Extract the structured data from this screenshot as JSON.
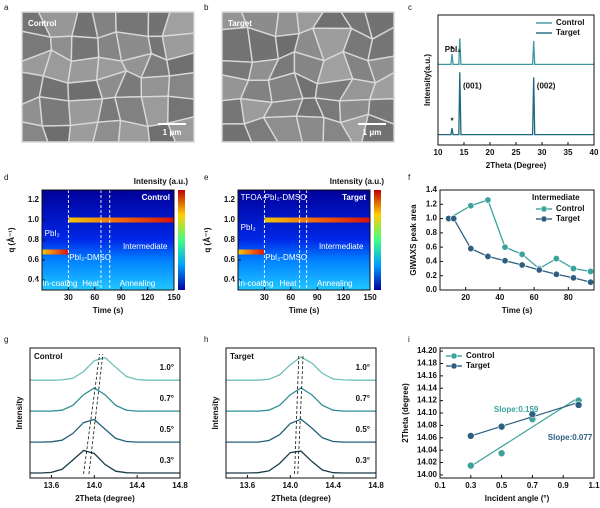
{
  "images": [
    {
      "panel_label": "a",
      "label": "Control",
      "scale_bar": "1 μm"
    },
    {
      "panel_label": "b",
      "label": "Target",
      "scale_bar": "1 μm"
    }
  ],
  "chart_data": [
    {
      "type": "line",
      "panel_label": "c",
      "xlabel": "2Theta (Degree)",
      "ylabel": "Intensity(a.u.)",
      "x": [
        10,
        12.5,
        12.7,
        12.9,
        14.0,
        14.2,
        14.4,
        28.2,
        28.4,
        28.6,
        40
      ],
      "series": [
        {
          "name": "Control",
          "color": "#3e9aa0",
          "values": [
            62,
            62,
            70,
            62,
            62,
            82,
            62,
            62,
            80,
            62,
            62
          ]
        },
        {
          "name": "Target",
          "color": "#1d6a80",
          "values": [
            8,
            8,
            13,
            8,
            8,
            56,
            8,
            8,
            52,
            8,
            8
          ]
        }
      ],
      "xlim": [
        10,
        40
      ],
      "xticks": [
        10,
        15,
        20,
        25,
        30,
        35,
        40
      ],
      "ylim": [
        0,
        100
      ],
      "legend": "upper right",
      "annotations": [
        "PbI₂",
        "*",
        "*",
        "(001)",
        "(002)"
      ]
    },
    {
      "type": "heatmap",
      "panel_label": "d",
      "title": "Control",
      "xlabel": "Time (s)",
      "ylabel": "q (Å⁻¹)",
      "colorbar_label": "Intensity (a.u.)",
      "xlim": [
        0,
        150
      ],
      "xticks": [
        30,
        60,
        90,
        120,
        150
      ],
      "ylim": [
        0.3,
        1.3
      ],
      "yticks": [
        0.4,
        0.6,
        0.8,
        {
          "value": 1,
          "label": "1.0"
        },
        1.2
      ],
      "bands": [
        {
          "q": 1.0,
          "t": [
            30,
            150
          ]
        },
        {
          "q": 0.68,
          "t": [
            0,
            30
          ]
        }
      ],
      "dividers": [
        30,
        67,
        77
      ],
      "annotations": [
        "PbI₂",
        "PbI₂-DMSO",
        "Intermediate"
      ],
      "stages": [
        "Spin-coating",
        "Heat",
        "Annealing"
      ]
    },
    {
      "type": "heatmap",
      "panel_label": "e",
      "title": "Target",
      "xlabel": "Time (s)",
      "ylabel": "q (Å⁻¹)",
      "colorbar_label": "Intensity (a.u.)",
      "xlim": [
        0,
        150
      ],
      "xticks": [
        30,
        60,
        90,
        120,
        150
      ],
      "ylim": [
        0.3,
        1.3
      ],
      "yticks": [
        0.4,
        0.6,
        0.8,
        {
          "value": 1,
          "label": "1.0"
        },
        1.2
      ],
      "bands": [
        {
          "q": 1.0,
          "t": [
            30,
            150
          ]
        },
        {
          "q": 0.68,
          "t": [
            0,
            30
          ]
        }
      ],
      "dividers": [
        30,
        70,
        78
      ],
      "annotations": [
        "TFOA-PbI₂-DMSO",
        "PbI₂",
        "PbI₂-DMSO",
        "Intermediate"
      ],
      "stages": [
        "Spin-coating",
        "Heat",
        "Annealing"
      ]
    },
    {
      "type": "line",
      "panel_label": "f",
      "xlabel": "Time (s)",
      "ylabel": "GIWAXS peak area",
      "legend_title": "Intermediate",
      "markers": true,
      "xlim": [
        5,
        95
      ],
      "xticks": [
        20,
        40,
        60,
        80
      ],
      "ylim": [
        0,
        1.4
      ],
      "yticks": [
        {
          "value": 0,
          "label": "0.0"
        },
        0.2,
        0.4,
        0.6,
        0.8,
        {
          "value": 1,
          "label": "1.0"
        },
        1.2,
        1.4
      ],
      "series": [
        {
          "name": "Control",
          "color": "#3ba39c",
          "x": [
            10,
            23,
            33,
            43,
            53,
            63,
            73,
            83,
            93
          ],
          "values": [
            1.0,
            1.18,
            1.26,
            0.6,
            0.5,
            0.3,
            0.44,
            0.3,
            0.26
          ]
        },
        {
          "name": "Target",
          "color": "#2f5f80",
          "x": [
            10,
            13,
            23,
            33,
            43,
            53,
            63,
            73,
            83,
            93
          ],
          "values": [
            1.0,
            1.0,
            0.58,
            0.47,
            0.41,
            0.35,
            0.28,
            0.22,
            0.17,
            0.11
          ]
        }
      ],
      "legend": "upper right"
    },
    {
      "type": "line",
      "panel_label": "g",
      "title": "Control",
      "xlabel": "2Theta (degree)",
      "ylabel": "Intensity",
      "x": [
        13.4,
        13.5,
        13.6,
        13.7,
        13.8,
        13.9,
        14.0,
        14.1,
        14.2,
        14.3,
        14.4,
        14.5,
        14.6,
        14.7,
        14.8
      ],
      "xlim": [
        13.4,
        14.8
      ],
      "xticks": [
        13.6,
        {
          "value": 14,
          "label": "14.0"
        },
        14.4,
        14.8
      ],
      "ylim": [
        -0.1,
        4.1
      ],
      "series": [
        {
          "name": "0.3°",
          "color": "#1c3b4a",
          "values": [
            0.06,
            0.06,
            0.08,
            0.18,
            0.48,
            0.79,
            0.69,
            0.34,
            0.12,
            0.07,
            0.06,
            0.06,
            0.06,
            0.06,
            0.06
          ]
        },
        {
          "name": "0.5°",
          "color": "#25607a",
          "values": [
            1.06,
            1.06,
            1.07,
            1.12,
            1.34,
            1.69,
            1.79,
            1.48,
            1.18,
            1.08,
            1.06,
            1.06,
            1.06,
            1.06,
            1.06
          ]
        },
        {
          "name": "0.7°",
          "color": "#2f8f94",
          "values": [
            2.06,
            2.06,
            2.06,
            2.09,
            2.25,
            2.59,
            2.81,
            2.59,
            2.25,
            2.09,
            2.06,
            2.06,
            2.06,
            2.06,
            2.06
          ]
        },
        {
          "name": "1.0°",
          "color": "#6fbfba",
          "values": [
            3.06,
            3.06,
            3.06,
            3.07,
            3.12,
            3.34,
            3.69,
            3.79,
            3.48,
            3.18,
            3.08,
            3.06,
            3.06,
            3.06,
            3.06
          ]
        }
      ],
      "guides": [
        [
          13.9,
          14.05
        ],
        [
          13.95,
          14.08
        ]
      ]
    },
    {
      "type": "line",
      "panel_label": "h",
      "title": "Target",
      "xlabel": "2Theta (degree)",
      "ylabel": "Intensity",
      "x": [
        13.4,
        13.5,
        13.6,
        13.7,
        13.8,
        13.9,
        14.0,
        14.1,
        14.2,
        14.3,
        14.4,
        14.5,
        14.6,
        14.7,
        14.8
      ],
      "xlim": [
        13.4,
        14.8
      ],
      "xticks": [
        13.6,
        {
          "value": 14,
          "label": "14.0"
        },
        14.4,
        14.8
      ],
      "ylim": [
        -0.1,
        4.1
      ],
      "series": [
        {
          "name": "0.3°",
          "color": "#1c3b4a",
          "values": [
            0.06,
            0.06,
            0.06,
            0.07,
            0.13,
            0.37,
            0.72,
            0.77,
            0.44,
            0.16,
            0.07,
            0.06,
            0.06,
            0.06,
            0.06
          ]
        },
        {
          "name": "0.5°",
          "color": "#25607a",
          "values": [
            1.06,
            1.06,
            1.06,
            1.06,
            1.11,
            1.3,
            1.66,
            1.8,
            1.52,
            1.2,
            1.08,
            1.06,
            1.06,
            1.06,
            1.06
          ]
        },
        {
          "name": "0.7°",
          "color": "#2f8f94",
          "values": [
            2.06,
            2.06,
            2.06,
            2.06,
            2.09,
            2.25,
            2.59,
            2.81,
            2.59,
            2.25,
            2.09,
            2.06,
            2.06,
            2.06,
            2.06
          ]
        },
        {
          "name": "1.0°",
          "color": "#6fbfba",
          "values": [
            3.06,
            3.06,
            3.06,
            3.06,
            3.09,
            3.23,
            3.56,
            3.81,
            3.62,
            3.28,
            3.1,
            3.07,
            3.06,
            3.06,
            3.06
          ]
        }
      ],
      "guides": [
        [
          14.04,
          14.08
        ],
        [
          14.07,
          14.12
        ]
      ]
    },
    {
      "type": "scatter",
      "panel_label": "i",
      "xlabel": "Incident angle (°)",
      "ylabel": "2Theta (degree)",
      "xlim": [
        0.1,
        1.1
      ],
      "xticks": [
        0.1,
        0.3,
        0.5,
        0.7,
        0.9,
        1.1
      ],
      "ylim": [
        13.995,
        14.205
      ],
      "yticks": [
        {
          "value": 14,
          "label": "14.00"
        },
        14.02,
        14.04,
        14.06,
        14.08,
        {
          "value": 14.1,
          "label": "14.10"
        },
        14.12,
        14.14,
        14.16,
        14.18,
        {
          "value": 14.2,
          "label": "14.20"
        }
      ],
      "series": [
        {
          "name": "Control",
          "color": "#3ba39c",
          "x": [
            0.3,
            0.5,
            0.7,
            1.0
          ],
          "values": [
            14.015,
            14.035,
            14.09,
            14.12
          ],
          "fit_x": [
            0.3,
            1.0
          ],
          "fit_y": [
            14.014,
            14.125
          ]
        },
        {
          "name": "Target",
          "color": "#2f5f80",
          "x": [
            0.3,
            0.5,
            0.7,
            1.0
          ],
          "values": [
            14.063,
            14.078,
            14.098,
            14.113
          ],
          "fit_x": [
            0.3,
            1.0
          ],
          "fit_y": [
            14.063,
            14.117
          ]
        }
      ],
      "annotations": [
        "Slope:0.159",
        "Slope:0.077"
      ],
      "legend": "upper left"
    }
  ]
}
